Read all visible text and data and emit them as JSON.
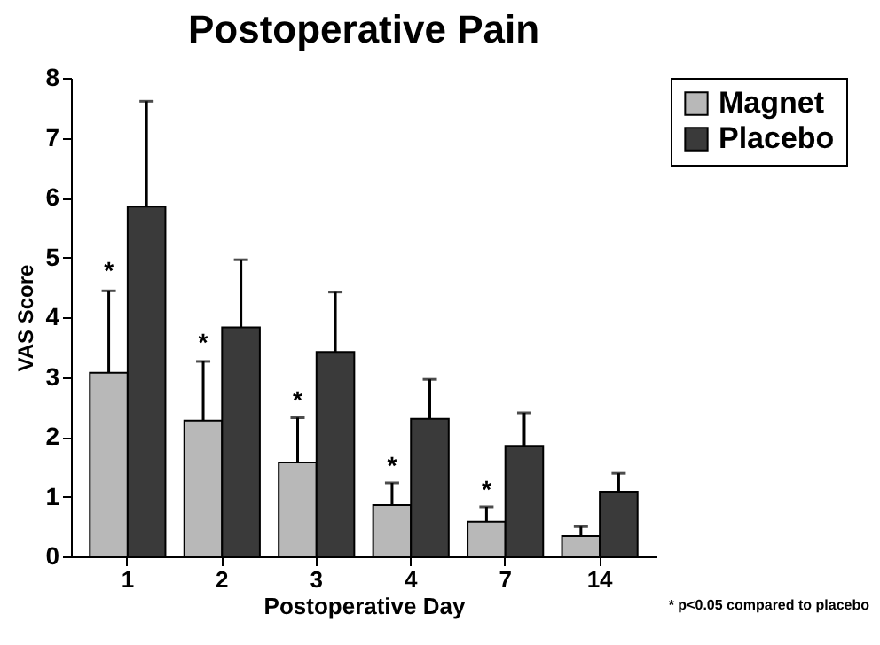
{
  "chart_data": {
    "type": "bar",
    "title": "Postoperative Pain",
    "xlabel": "Postoperative Day",
    "ylabel": "VAS Score",
    "categories": [
      "1",
      "2",
      "3",
      "4",
      "7",
      "14"
    ],
    "series": [
      {
        "name": "Magnet",
        "color": "#b8b8b8",
        "values": [
          3.07,
          2.27,
          1.57,
          0.86,
          0.58,
          0.34
        ],
        "errors": [
          [
            3.07,
            4.44
          ],
          [
            2.27,
            3.26
          ],
          [
            1.57,
            2.32
          ],
          [
            0.86,
            1.23
          ],
          [
            0.58,
            0.83
          ],
          [
            0.34,
            0.5
          ]
        ]
      },
      {
        "name": "Placebo",
        "color": "#3a3a3a",
        "values": [
          5.85,
          3.83,
          3.42,
          2.3,
          1.85,
          1.08
        ],
        "errors": [
          [
            5.85,
            7.61
          ],
          [
            3.83,
            4.96
          ],
          [
            3.42,
            4.42
          ],
          [
            2.3,
            2.96
          ],
          [
            1.85,
            2.4
          ],
          [
            1.08,
            1.39
          ]
        ]
      }
    ],
    "ylim": [
      0,
      8
    ],
    "yticks": [
      0,
      1,
      2,
      3,
      4,
      5,
      6,
      7,
      8
    ],
    "grid": false,
    "legend": "right",
    "annotations": [
      {
        "text": "*",
        "x": "1",
        "y": 4.75
      },
      {
        "text": "*",
        "x": "2",
        "y": 3.55
      },
      {
        "text": "*",
        "x": "3",
        "y": 2.6
      },
      {
        "text": "*",
        "x": "4",
        "y": 1.5
      },
      {
        "text": "*",
        "x": "7",
        "y": 1.1
      },
      "* p<0.05 compared to placebo"
    ]
  }
}
